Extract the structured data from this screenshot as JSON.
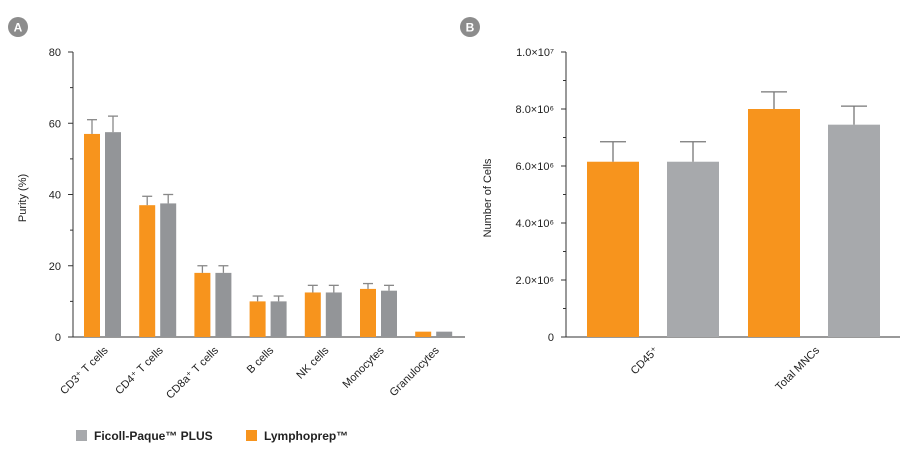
{
  "colors": {
    "lymphoprep": "#F7941D",
    "ficoll": "#A7A9AC",
    "ficoll_dark": "#939598",
    "badge": "#8C8C8C"
  },
  "legend": [
    {
      "label": "Ficoll-Paque™ PLUS",
      "color_key": "ficoll"
    },
    {
      "label": "Lymphoprep™",
      "color_key": "lymphoprep"
    }
  ],
  "chart_data": [
    {
      "panel": "A",
      "type": "bar",
      "ylabel": "Purity (%)",
      "ylim": [
        0,
        80
      ],
      "yticks": [
        "0",
        "20",
        "40",
        "60",
        "80"
      ],
      "categories": [
        "CD3⁺ T cells",
        "CD4⁺ T cells",
        "CD8a⁺ T cells",
        "B cells",
        "NK cells",
        "Monocytes",
        "Granulocytes"
      ],
      "series": [
        {
          "name": "Lymphoprep™",
          "values": [
            57,
            37,
            18,
            10,
            12.5,
            13.5,
            1.5
          ],
          "errors": [
            4,
            2.5,
            2,
            1.5,
            2,
            1.5,
            0
          ]
        },
        {
          "name": "Ficoll-Paque™ PLUS",
          "values": [
            57.5,
            37.5,
            18,
            10,
            12.5,
            13,
            1.5
          ],
          "errors": [
            4.5,
            2.5,
            2,
            1.5,
            2,
            1.5,
            0
          ]
        }
      ]
    },
    {
      "panel": "B",
      "type": "bar",
      "ylabel": "Number of Cells",
      "ylim": [
        0,
        10000000
      ],
      "yticks": [
        "0",
        "2.0×10⁶",
        "4.0×10⁶",
        "6.0×10⁶",
        "8.0×10⁶",
        "1.0×10⁷"
      ],
      "categories": [
        "CD45⁺",
        "Total MNCs"
      ],
      "series": [
        {
          "name": "Lymphoprep™",
          "values": [
            6150000,
            8000000
          ],
          "errors": [
            700000,
            600000
          ]
        },
        {
          "name": "Ficoll-Paque™ PLUS",
          "values": [
            6150000,
            7450000
          ],
          "errors": [
            700000,
            650000
          ]
        }
      ]
    }
  ]
}
